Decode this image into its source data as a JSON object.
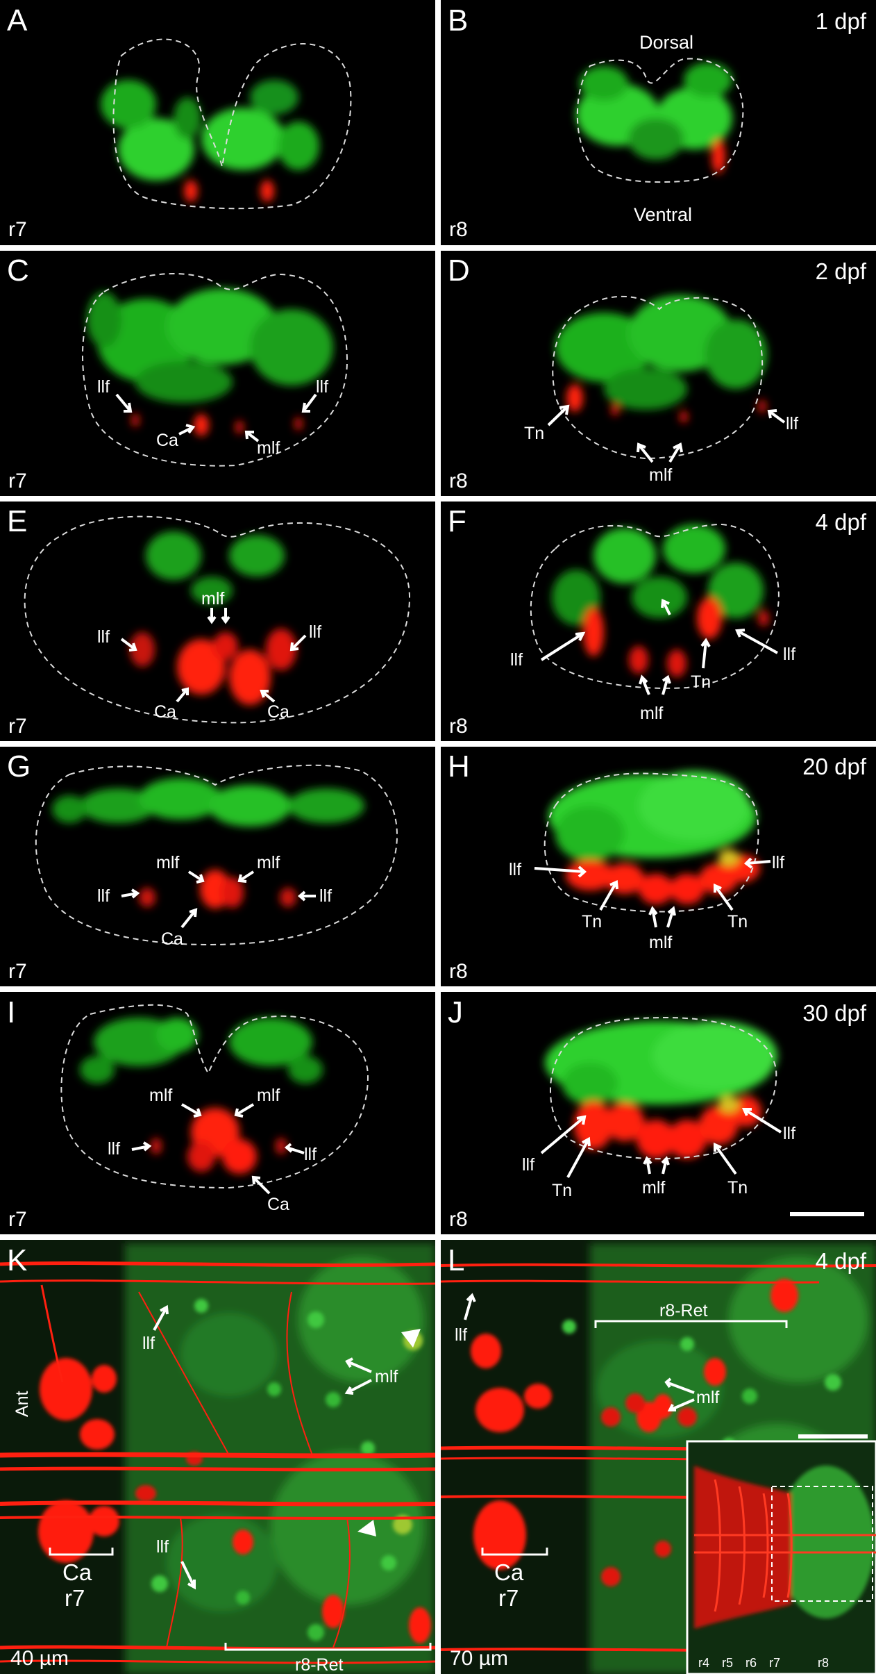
{
  "panels": [
    {
      "letter": "A",
      "corner": "r7"
    },
    {
      "letter": "B",
      "corner": "r8",
      "stage": "1 dpf",
      "dorsal": "Dorsal",
      "ventral": "Ventral"
    },
    {
      "letter": "C",
      "corner": "r7",
      "llf": "llf",
      "ca": "Ca",
      "mlf": "mlf"
    },
    {
      "letter": "D",
      "corner": "r8",
      "stage": "2 dpf",
      "tn": "Tn",
      "llf": "llf",
      "mlf": "mlf"
    },
    {
      "letter": "E",
      "corner": "r7",
      "llf": "llf",
      "mlf": "mlf",
      "ca": "Ca"
    },
    {
      "letter": "F",
      "corner": "r8",
      "stage": "4 dpf",
      "llf": "llf",
      "tn": "Tn",
      "mlf": "mlf"
    },
    {
      "letter": "G",
      "corner": "r7",
      "llf": "llf",
      "mlf": "mlf",
      "ca": "Ca"
    },
    {
      "letter": "H",
      "corner": "r8",
      "stage": "20 dpf",
      "llf": "llf",
      "tn": "Tn",
      "mlf": "mlf"
    },
    {
      "letter": "I",
      "corner": "r7",
      "llf": "llf",
      "mlf": "mlf",
      "ca": "Ca"
    },
    {
      "letter": "J",
      "corner": "r8",
      "stage": "30 dpf",
      "llf": "llf",
      "tn": "Tn",
      "mlf": "mlf"
    },
    {
      "letter": "K",
      "depth": "40 µm",
      "llf": "llf",
      "mlf": "mlf",
      "ant": "Ant",
      "ca": "Ca",
      "r7": "r7",
      "ret": "r8-Ret"
    },
    {
      "letter": "L",
      "stage": "4 dpf",
      "depth": "70 µm",
      "llf": "llf",
      "mlf": "mlf",
      "ca": "Ca",
      "r7": "r7",
      "ret": "r8-Ret",
      "inset_labels": [
        "r4",
        "r5",
        "r6",
        "r7",
        "r8"
      ]
    }
  ],
  "colors": {
    "background": "#000000",
    "gutter": "#ffffff",
    "green": "#22c322",
    "red": "#ff1a0e",
    "text": "#ffffff"
  }
}
